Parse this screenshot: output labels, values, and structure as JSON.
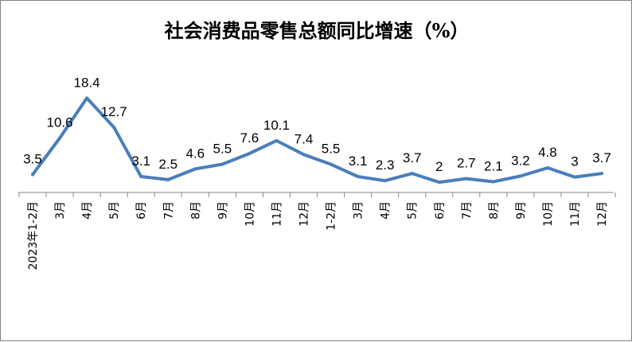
{
  "chart_data": {
    "type": "line",
    "title": "社会消费品零售总额同比增速（%）",
    "categories": [
      "2023年1-2月",
      "3月",
      "4月",
      "5月",
      "6月",
      "7月",
      "8月",
      "9月",
      "10月",
      "11月",
      "12月",
      "1-2月",
      "3月",
      "4月",
      "5月",
      "6月",
      "7月",
      "8月",
      "9月",
      "10月",
      "11月",
      "12月"
    ],
    "series": [
      {
        "values": [
          3.5,
          10.6,
          18.4,
          12.7,
          3.1,
          2.5,
          4.6,
          5.5,
          7.6,
          10.1,
          7.4,
          5.5,
          3.1,
          2.3,
          3.7,
          2,
          2.7,
          2.1,
          3.2,
          4.8,
          3,
          3.7
        ],
        "labels": [
          "3.5",
          "10.6",
          "18.4",
          "12.7",
          "3.1",
          "2.5",
          "4.6",
          "5.5",
          "7.6",
          "10.1",
          "7.4",
          "5.5",
          "3.1",
          "2.3",
          "3.7",
          "2",
          "2.7",
          "2.1",
          "3.2",
          "4.8",
          "3",
          "3.7"
        ],
        "color": "#4a7ebb"
      }
    ],
    "ylim": [
      0,
      20
    ],
    "grid": false,
    "legend": "none",
    "xlabel": "",
    "ylabel": ""
  }
}
